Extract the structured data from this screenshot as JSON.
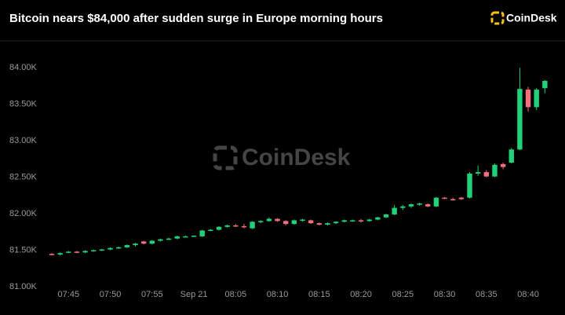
{
  "chart_data": {
    "type": "candlestick",
    "title": "Bitcoin nears $84,000 after sudden surge in Europe morning hours",
    "brand": "CoinDesk",
    "watermark": "CoinDesk",
    "categories": [
      null,
      null,
      "07:45",
      null,
      null,
      null,
      null,
      "07:50",
      null,
      null,
      null,
      null,
      "07:55",
      null,
      null,
      null,
      null,
      "Sep 21",
      null,
      null,
      null,
      null,
      "08:05",
      null,
      null,
      null,
      null,
      "08:10",
      null,
      null,
      null,
      null,
      "08:15",
      null,
      null,
      null,
      null,
      "08:20",
      null,
      null,
      null,
      null,
      "08:25",
      null,
      null,
      null,
      null,
      "08:30",
      null,
      null,
      null,
      null,
      "08:35",
      null,
      null,
      null,
      null,
      "08:40",
      null,
      null
    ],
    "open": [
      81450,
      81440,
      81470,
      81480,
      81470,
      81490,
      81500,
      81510,
      81530,
      81540,
      81570,
      81620,
      81590,
      81630,
      81650,
      81660,
      81690,
      81690,
      81690,
      81770,
      81780,
      81820,
      81840,
      81830,
      81800,
      81890,
      81900,
      81930,
      81900,
      81860,
      81910,
      81910,
      81870,
      81850,
      81870,
      81890,
      81910,
      81910,
      81900,
      81920,
      81950,
      81990,
      82080,
      82100,
      82130,
      82130,
      82100,
      82220,
      82200,
      82220,
      82220,
      82550,
      82570,
      82510,
      82680,
      82700,
      82880,
      83700,
      83460,
      83720
    ],
    "high": [
      81460,
      81470,
      81490,
      81490,
      81500,
      81510,
      81520,
      81540,
      81550,
      81580,
      81600,
      81630,
      81640,
      81660,
      81670,
      81700,
      81700,
      81700,
      81780,
      81790,
      81830,
      81850,
      81860,
      81860,
      81900,
      81910,
      81950,
      81940,
      81910,
      81920,
      81930,
      81920,
      81880,
      81880,
      81900,
      81920,
      81920,
      81930,
      81930,
      81960,
      82000,
      82120,
      82120,
      82140,
      82150,
      82140,
      82230,
      82230,
      82220,
      82230,
      82570,
      82660,
      82600,
      82690,
      82700,
      82900,
      84000,
      83740,
      83720,
      83830
    ],
    "low": [
      81430,
      81430,
      81460,
      81460,
      81460,
      81480,
      81490,
      81500,
      81520,
      81530,
      81550,
      81580,
      81580,
      81620,
      81640,
      81650,
      81680,
      81680,
      81680,
      81760,
      81770,
      81810,
      81820,
      81800,
      81790,
      81870,
      81890,
      81890,
      81840,
      81850,
      81890,
      81860,
      81840,
      81840,
      81860,
      81880,
      81890,
      81880,
      81890,
      81910,
      81940,
      81980,
      82050,
      82080,
      82110,
      82090,
      82090,
      82200,
      82180,
      82190,
      82210,
      82520,
      82500,
      82500,
      82610,
      82690,
      82870,
      83400,
      83420,
      83650
    ],
    "close": [
      81440,
      81460,
      81480,
      81470,
      81490,
      81500,
      81510,
      81530,
      81540,
      81570,
      81590,
      81590,
      81630,
      81650,
      81660,
      81690,
      81690,
      81700,
      81770,
      81780,
      81820,
      81840,
      81830,
      81820,
      81890,
      81900,
      81930,
      81900,
      81860,
      81910,
      81920,
      81870,
      81850,
      81870,
      81890,
      81910,
      81910,
      81900,
      81920,
      81950,
      81990,
      82080,
      82100,
      82130,
      82140,
      82100,
      82220,
      82210,
      82190,
      82200,
      82550,
      82570,
      82510,
      82670,
      82640,
      82880,
      83710,
      83460,
      83700,
      83820
    ],
    "up_color": "#1fd27a",
    "down_color": "#f2707c",
    "ylim": [
      81000,
      84250
    ],
    "yticks": [
      {
        "value": 81000,
        "label": "81.00K"
      },
      {
        "value": 81500,
        "label": "81.50K"
      },
      {
        "value": 82000,
        "label": "82.00K"
      },
      {
        "value": 82500,
        "label": "82.50K"
      },
      {
        "value": 83000,
        "label": "83.00K"
      },
      {
        "value": 83500,
        "label": "83.50K"
      },
      {
        "value": 84000,
        "label": "84.00K"
      }
    ],
    "grid": false
  }
}
